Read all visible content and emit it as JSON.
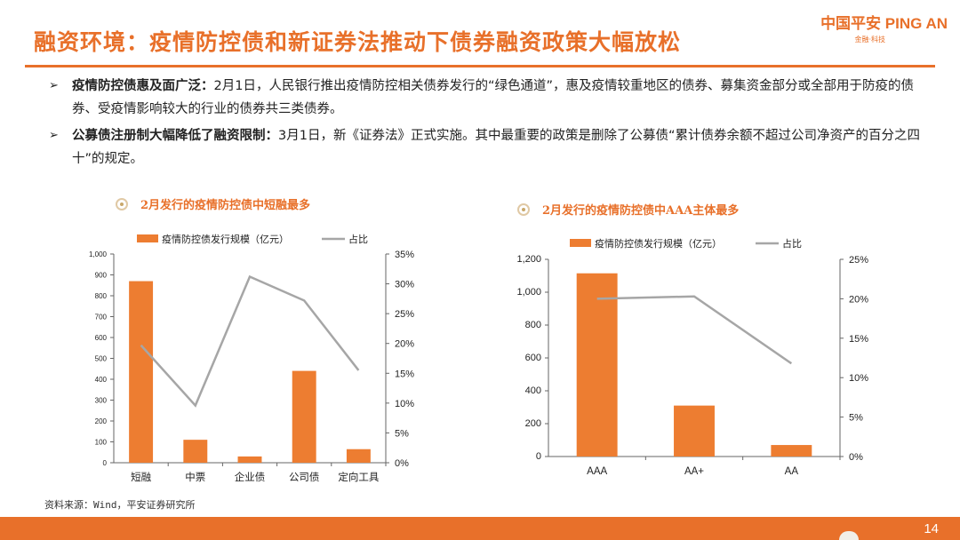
{
  "title": "融资环境：疫情防控债和新证券法推动下债券融资政策大幅放松",
  "logo": {
    "main": "中国平安 PING AN",
    "sub": "金融·科技"
  },
  "bullets": [
    {
      "bold": "疫情防控债惠及面广泛：",
      "text": "2月1日，人民银行推出疫情防控相关债券发行的“绿色通道”，惠及疫情较重地区的债券、募集资金部分或全部用于防疫的债券、受疫情影响较大的行业的债券共三类债券。"
    },
    {
      "bold": "公募债注册制大幅降低了融资限制：",
      "text": "3月1日，新《证券法》正式实施。其中最重要的政策是删除了公募债“累计债券余额不超过公司净资产的百分之四十”的规定。"
    }
  ],
  "colors": {
    "accent": "#e8702a",
    "bar": "#ed7d31",
    "line": "#a6a6a6"
  },
  "source": "资料来源：Wind，平安证券研究所",
  "page_number": "14",
  "chart_data": [
    {
      "type": "bar",
      "title": "2月发行的疫情防控债中短融最多",
      "categories": [
        "短融",
        "中票",
        "企业债",
        "公司债",
        "定向工具"
      ],
      "series": [
        {
          "name": "疫情防控债发行规模（亿元）",
          "type": "bar",
          "axis": "left",
          "values": [
            870,
            110,
            30,
            440,
            65
          ]
        },
        {
          "name": "占比",
          "type": "line",
          "axis": "right",
          "values": [
            19.7,
            9.6,
            31.2,
            27.2,
            15.5
          ]
        }
      ],
      "left_axis": {
        "ylim": [
          0,
          1000
        ],
        "ticks": [
          "0",
          "100",
          "200",
          "300",
          "400",
          "500",
          "600",
          "700",
          "800",
          "900",
          "1,000"
        ]
      },
      "right_axis": {
        "ylim": [
          0,
          35
        ],
        "ticks": [
          "0%",
          "5%",
          "10%",
          "15%",
          "20%",
          "25%",
          "30%",
          "35%"
        ]
      },
      "legend": "top"
    },
    {
      "type": "bar",
      "title": "2月发行的疫情防控债中AAA主体最多",
      "categories": [
        "AAA",
        "AA+",
        "AA"
      ],
      "series": [
        {
          "name": "疫情防控债发行规模（亿元）",
          "type": "bar",
          "axis": "left",
          "values": [
            1115,
            310,
            70
          ]
        },
        {
          "name": "占比",
          "type": "line",
          "axis": "right",
          "values": [
            20.0,
            20.3,
            11.8
          ]
        }
      ],
      "left_axis": {
        "ylim": [
          0,
          1200
        ],
        "ticks": [
          "0",
          "200",
          "400",
          "600",
          "800",
          "1,000",
          "1,200"
        ]
      },
      "right_axis": {
        "ylim": [
          0,
          25
        ],
        "ticks": [
          "0%",
          "5%",
          "10%",
          "15%",
          "20%",
          "25%"
        ]
      },
      "legend": "top"
    }
  ]
}
